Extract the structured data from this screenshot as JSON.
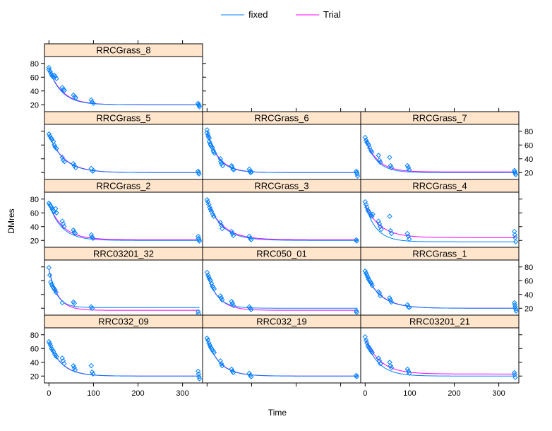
{
  "chart_data": {
    "type": "scatter",
    "layout": "lattice",
    "xlabel": "Time",
    "ylabel": "DMres",
    "xlim": [
      -10,
      345
    ],
    "ylim": [
      10,
      90
    ],
    "xticks": [
      0,
      100,
      200,
      300
    ],
    "yticks": [
      20,
      40,
      60,
      80
    ],
    "legend": {
      "position": "top",
      "entries": [
        {
          "label": "fixed",
          "color": "#0080ff"
        },
        {
          "label": "Trial",
          "color": "#ff00ff"
        }
      ]
    },
    "colors": {
      "points": "#0080ff",
      "fixed": "#0080ff",
      "trial": "#ff00ff",
      "strip": "#ffe5cc"
    },
    "panels": [
      {
        "name": "RRCGrass_8",
        "row": 0,
        "col": 0,
        "fixed": [
          72,
          20,
          0.035
        ],
        "trial": [
          72,
          20,
          0.033
        ],
        "points": [
          [
            0,
            74
          ],
          [
            0,
            71
          ],
          [
            3,
            68
          ],
          [
            5,
            65
          ],
          [
            7,
            62
          ],
          [
            10,
            60
          ],
          [
            12,
            63
          ],
          [
            14,
            61
          ],
          [
            17,
            58
          ],
          [
            30,
            45
          ],
          [
            32,
            42
          ],
          [
            35,
            41
          ],
          [
            55,
            34
          ],
          [
            58,
            32
          ],
          [
            60,
            30
          ],
          [
            95,
            27
          ],
          [
            97,
            24
          ],
          [
            100,
            22
          ],
          [
            335,
            22
          ],
          [
            336,
            20
          ],
          [
            337,
            19
          ],
          [
            338,
            17
          ]
        ]
      },
      {
        "name": "RRCGrass_5",
        "row": 1,
        "col": 0,
        "fixed": [
          75,
          20,
          0.03
        ],
        "trial": [
          75,
          20,
          0.029
        ],
        "points": [
          [
            0,
            76
          ],
          [
            2,
            73
          ],
          [
            5,
            70
          ],
          [
            7,
            68
          ],
          [
            10,
            65
          ],
          [
            12,
            60
          ],
          [
            14,
            57
          ],
          [
            17,
            55
          ],
          [
            30,
            42
          ],
          [
            32,
            38
          ],
          [
            35,
            36
          ],
          [
            55,
            33
          ],
          [
            57,
            30
          ],
          [
            60,
            27
          ],
          [
            95,
            26
          ],
          [
            98,
            22
          ],
          [
            100,
            23
          ],
          [
            335,
            22
          ],
          [
            336,
            20
          ],
          [
            337,
            18
          ]
        ]
      },
      {
        "name": "RRCGrass_6",
        "row": 1,
        "col": 1,
        "fixed": [
          80,
          20,
          0.04
        ],
        "trial": [
          80,
          20,
          0.038
        ],
        "points": [
          [
            0,
            82
          ],
          [
            0,
            78
          ],
          [
            2,
            75
          ],
          [
            3,
            72
          ],
          [
            5,
            70
          ],
          [
            5,
            65
          ],
          [
            7,
            62
          ],
          [
            8,
            60
          ],
          [
            10,
            58
          ],
          [
            12,
            56
          ],
          [
            14,
            52
          ],
          [
            15,
            50
          ],
          [
            17,
            48
          ],
          [
            30,
            40
          ],
          [
            31,
            36
          ],
          [
            32,
            33
          ],
          [
            35,
            30
          ],
          [
            55,
            30
          ],
          [
            56,
            28
          ],
          [
            58,
            25
          ],
          [
            60,
            24
          ],
          [
            95,
            25
          ],
          [
            96,
            22
          ],
          [
            98,
            20
          ],
          [
            100,
            21
          ],
          [
            335,
            22
          ],
          [
            336,
            20
          ],
          [
            337,
            18
          ],
          [
            338,
            15
          ]
        ]
      },
      {
        "name": "RRCGrass_7",
        "row": 1,
        "col": 2,
        "fixed": [
          70,
          20,
          0.04
        ],
        "trial": [
          70,
          21,
          0.037
        ],
        "points": [
          [
            0,
            71
          ],
          [
            2,
            67
          ],
          [
            4,
            64
          ],
          [
            6,
            62
          ],
          [
            8,
            60
          ],
          [
            10,
            56
          ],
          [
            13,
            52
          ],
          [
            15,
            50
          ],
          [
            30,
            45
          ],
          [
            32,
            38
          ],
          [
            34,
            35
          ],
          [
            55,
            42
          ],
          [
            57,
            30
          ],
          [
            59,
            27
          ],
          [
            95,
            30
          ],
          [
            97,
            27
          ],
          [
            99,
            24
          ],
          [
            335,
            23
          ],
          [
            336,
            21
          ],
          [
            337,
            19
          ],
          [
            338,
            17
          ]
        ]
      },
      {
        "name": "RRCGrass_2",
        "row": 2,
        "col": 0,
        "fixed": [
          73,
          20,
          0.035
        ],
        "trial": [
          73,
          21,
          0.032
        ],
        "points": [
          [
            0,
            74
          ],
          [
            2,
            72
          ],
          [
            4,
            70
          ],
          [
            6,
            68
          ],
          [
            8,
            65
          ],
          [
            10,
            63
          ],
          [
            12,
            62
          ],
          [
            15,
            66
          ],
          [
            17,
            60
          ],
          [
            30,
            48
          ],
          [
            32,
            44
          ],
          [
            34,
            40
          ],
          [
            55,
            35
          ],
          [
            57,
            32
          ],
          [
            59,
            30
          ],
          [
            95,
            28
          ],
          [
            97,
            25
          ],
          [
            99,
            23
          ],
          [
            335,
            26
          ],
          [
            336,
            23
          ],
          [
            337,
            21
          ],
          [
            338,
            19
          ]
        ]
      },
      {
        "name": "RRCGrass_3",
        "row": 2,
        "col": 1,
        "fixed": [
          78,
          20,
          0.03
        ],
        "trial": [
          78,
          21,
          0.029
        ],
        "points": [
          [
            0,
            79
          ],
          [
            2,
            76
          ],
          [
            4,
            72
          ],
          [
            6,
            68
          ],
          [
            8,
            65
          ],
          [
            10,
            62
          ],
          [
            13,
            58
          ],
          [
            15,
            55
          ],
          [
            30,
            46
          ],
          [
            32,
            42
          ],
          [
            34,
            37
          ],
          [
            55,
            33
          ],
          [
            57,
            30
          ],
          [
            59,
            27
          ],
          [
            95,
            26
          ],
          [
            97,
            23
          ],
          [
            99,
            21
          ],
          [
            335,
            21
          ],
          [
            336,
            19
          ]
        ]
      },
      {
        "name": "RRCGrass_4",
        "row": 2,
        "col": 2,
        "fixed": [
          72,
          18,
          0.04
        ],
        "trial": [
          72,
          24,
          0.03
        ],
        "points": [
          [
            0,
            76
          ],
          [
            2,
            72
          ],
          [
            4,
            68
          ],
          [
            6,
            64
          ],
          [
            8,
            62
          ],
          [
            10,
            60
          ],
          [
            13,
            57
          ],
          [
            15,
            55
          ],
          [
            17,
            58
          ],
          [
            30,
            48
          ],
          [
            32,
            44
          ],
          [
            34,
            40
          ],
          [
            36,
            36
          ],
          [
            55,
            55
          ],
          [
            57,
            34
          ],
          [
            59,
            30
          ],
          [
            95,
            30
          ],
          [
            97,
            26
          ],
          [
            99,
            22
          ],
          [
            335,
            33
          ],
          [
            336,
            28
          ],
          [
            337,
            24
          ],
          [
            338,
            18
          ]
        ]
      },
      {
        "name": "RRC03201_32",
        "row": 3,
        "col": 0,
        "fixed": [
          77,
          21,
          0.06
        ],
        "trial": [
          77,
          17,
          0.05
        ],
        "points": [
          [
            0,
            79
          ],
          [
            2,
            68
          ],
          [
            4,
            58
          ],
          [
            6,
            55
          ],
          [
            8,
            52
          ],
          [
            10,
            50
          ],
          [
            12,
            48
          ],
          [
            14,
            46
          ],
          [
            16,
            43
          ],
          [
            30,
            28
          ],
          [
            55,
            29
          ],
          [
            57,
            27
          ],
          [
            95,
            22
          ],
          [
            97,
            20
          ],
          [
            335,
            15
          ],
          [
            336,
            12
          ]
        ]
      },
      {
        "name": "RRC050_01",
        "row": 3,
        "col": 1,
        "fixed": [
          70,
          20,
          0.045
        ],
        "trial": [
          70,
          17,
          0.04
        ],
        "points": [
          [
            0,
            72
          ],
          [
            2,
            68
          ],
          [
            4,
            65
          ],
          [
            6,
            62
          ],
          [
            8,
            60
          ],
          [
            10,
            56
          ],
          [
            12,
            52
          ],
          [
            14,
            50
          ],
          [
            16,
            48
          ],
          [
            30,
            38
          ],
          [
            32,
            35
          ],
          [
            34,
            32
          ],
          [
            55,
            30
          ],
          [
            57,
            27
          ],
          [
            59,
            24
          ],
          [
            95,
            22
          ],
          [
            97,
            20
          ],
          [
            99,
            18
          ],
          [
            335,
            16
          ],
          [
            336,
            14
          ]
        ]
      },
      {
        "name": "RRCGrass_1",
        "row": 3,
        "col": 2,
        "fixed": [
          72,
          20,
          0.03
        ],
        "trial": [
          72,
          20,
          0.029
        ],
        "points": [
          [
            0,
            74
          ],
          [
            2,
            71
          ],
          [
            4,
            68
          ],
          [
            6,
            65
          ],
          [
            8,
            62
          ],
          [
            10,
            60
          ],
          [
            12,
            58
          ],
          [
            14,
            56
          ],
          [
            16,
            53
          ],
          [
            30,
            44
          ],
          [
            32,
            42
          ],
          [
            34,
            38
          ],
          [
            55,
            35
          ],
          [
            57,
            32
          ],
          [
            59,
            29
          ],
          [
            95,
            25
          ],
          [
            97,
            22
          ],
          [
            99,
            21
          ],
          [
            335,
            28
          ],
          [
            336,
            25
          ],
          [
            337,
            22
          ],
          [
            338,
            19
          ],
          [
            339,
            16
          ]
        ]
      },
      {
        "name": "RRC032_09",
        "row": 4,
        "col": 0,
        "fixed": [
          69,
          20,
          0.035
        ],
        "trial": [
          69,
          20,
          0.034
        ],
        "points": [
          [
            0,
            70
          ],
          [
            2,
            67
          ],
          [
            4,
            64
          ],
          [
            6,
            60
          ],
          [
            8,
            58
          ],
          [
            10,
            56
          ],
          [
            13,
            52
          ],
          [
            15,
            50
          ],
          [
            17,
            48
          ],
          [
            30,
            46
          ],
          [
            32,
            42
          ],
          [
            34,
            38
          ],
          [
            55,
            35
          ],
          [
            57,
            32
          ],
          [
            59,
            29
          ],
          [
            95,
            35
          ],
          [
            97,
            26
          ],
          [
            99,
            23
          ],
          [
            335,
            27
          ],
          [
            336,
            23
          ],
          [
            337,
            19
          ],
          [
            338,
            16
          ]
        ]
      },
      {
        "name": "RRC032_19",
        "row": 4,
        "col": 1,
        "fixed": [
          73,
          20,
          0.035
        ],
        "trial": [
          73,
          20,
          0.034
        ],
        "points": [
          [
            0,
            75
          ],
          [
            2,
            72
          ],
          [
            4,
            68
          ],
          [
            6,
            65
          ],
          [
            8,
            62
          ],
          [
            10,
            60
          ],
          [
            12,
            58
          ],
          [
            14,
            56
          ],
          [
            16,
            54
          ],
          [
            30,
            42
          ],
          [
            32,
            38
          ],
          [
            34,
            35
          ],
          [
            55,
            30
          ],
          [
            57,
            27
          ],
          [
            59,
            25
          ],
          [
            95,
            24
          ],
          [
            97,
            21
          ],
          [
            99,
            19
          ],
          [
            335,
            21
          ],
          [
            336,
            19
          ]
        ]
      },
      {
        "name": "RRC03201_21",
        "row": 4,
        "col": 2,
        "fixed": [
          75,
          20,
          0.035
        ],
        "trial": [
          75,
          23,
          0.03
        ],
        "points": [
          [
            0,
            77
          ],
          [
            2,
            72
          ],
          [
            4,
            68
          ],
          [
            6,
            64
          ],
          [
            8,
            62
          ],
          [
            10,
            60
          ],
          [
            12,
            58
          ],
          [
            14,
            56
          ],
          [
            16,
            54
          ],
          [
            30,
            46
          ],
          [
            32,
            42
          ],
          [
            34,
            38
          ],
          [
            55,
            40
          ],
          [
            57,
            35
          ],
          [
            59,
            32
          ],
          [
            95,
            30
          ],
          [
            97,
            27
          ],
          [
            99,
            24
          ],
          [
            335,
            25
          ],
          [
            336,
            22
          ],
          [
            337,
            18
          ]
        ]
      }
    ]
  }
}
